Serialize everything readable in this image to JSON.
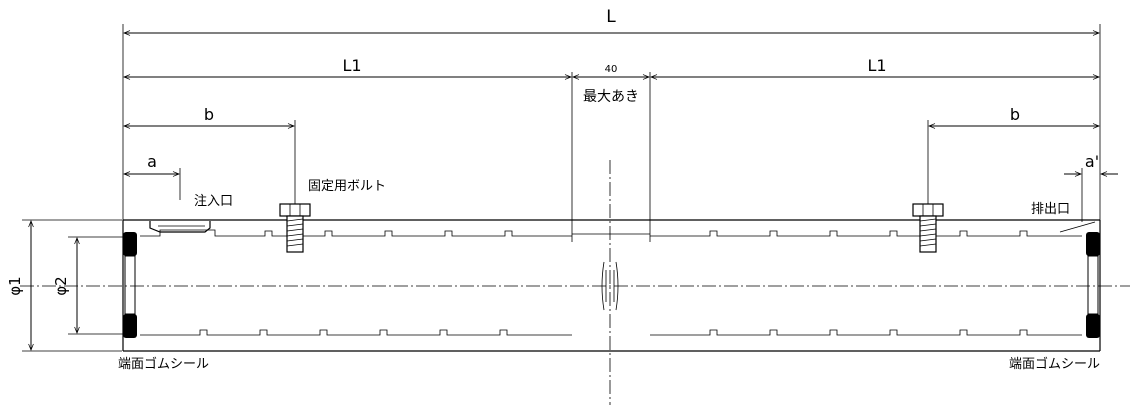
{
  "labels": {
    "L": "L",
    "L1_left": "L1",
    "L1_right": "L1",
    "gap_value": "40",
    "gap_label": "最大あき",
    "b_left": "b",
    "b_right": "b",
    "a_left": "a",
    "a_right": "a'",
    "inlet": "注入口",
    "bolt": "固定用ボルト",
    "outlet": "排出口",
    "phi1": "φ1",
    "phi2": "φ2",
    "seal_left": "端面ゴムシール",
    "seal_right": "端面ゴムシール"
  }
}
